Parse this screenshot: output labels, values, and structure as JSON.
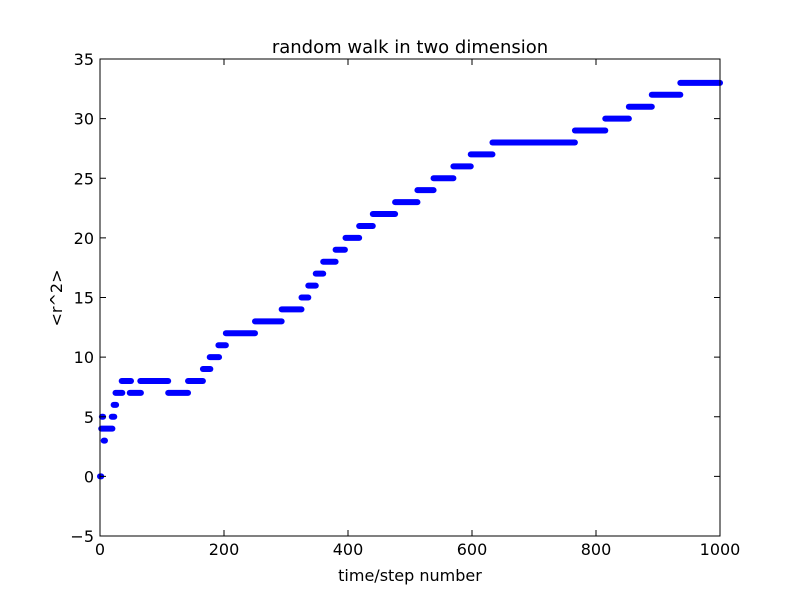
{
  "chart_data": {
    "type": "scatter",
    "title": "random walk in two dimension",
    "xlabel": "time/step number",
    "ylabel": "<r^2>",
    "xlim": [
      0,
      1000
    ],
    "ylim": [
      -5,
      35
    ],
    "xticks": [
      0,
      200,
      400,
      600,
      800,
      1000
    ],
    "yticks": [
      -5,
      0,
      5,
      10,
      15,
      20,
      25,
      30,
      35
    ],
    "grid": false,
    "marker_color": "#0000ff",
    "steps": [
      {
        "x0": 0,
        "x1": 2,
        "y": 0
      },
      {
        "x0": 3,
        "x1": 5,
        "y": 5
      },
      {
        "x0": 6,
        "x1": 8,
        "y": 3
      },
      {
        "x0": 2,
        "x1": 20,
        "y": 4
      },
      {
        "x0": 19,
        "x1": 23,
        "y": 5
      },
      {
        "x0": 22,
        "x1": 26,
        "y": 6
      },
      {
        "x0": 25,
        "x1": 36,
        "y": 7
      },
      {
        "x0": 35,
        "x1": 50,
        "y": 8
      },
      {
        "x0": 48,
        "x1": 66,
        "y": 7
      },
      {
        "x0": 65,
        "x1": 110,
        "y": 8
      },
      {
        "x0": 110,
        "x1": 142,
        "y": 7
      },
      {
        "x0": 142,
        "x1": 166,
        "y": 8
      },
      {
        "x0": 166,
        "x1": 178,
        "y": 9
      },
      {
        "x0": 177,
        "x1": 192,
        "y": 10
      },
      {
        "x0": 191,
        "x1": 203,
        "y": 11
      },
      {
        "x0": 203,
        "x1": 250,
        "y": 12
      },
      {
        "x0": 250,
        "x1": 293,
        "y": 13
      },
      {
        "x0": 293,
        "x1": 325,
        "y": 14
      },
      {
        "x0": 325,
        "x1": 336,
        "y": 15
      },
      {
        "x0": 336,
        "x1": 348,
        "y": 16
      },
      {
        "x0": 348,
        "x1": 360,
        "y": 17
      },
      {
        "x0": 360,
        "x1": 380,
        "y": 18
      },
      {
        "x0": 380,
        "x1": 395,
        "y": 19
      },
      {
        "x0": 396,
        "x1": 418,
        "y": 20
      },
      {
        "x0": 418,
        "x1": 440,
        "y": 21
      },
      {
        "x0": 440,
        "x1": 476,
        "y": 22
      },
      {
        "x0": 476,
        "x1": 512,
        "y": 23
      },
      {
        "x0": 512,
        "x1": 538,
        "y": 24
      },
      {
        "x0": 538,
        "x1": 570,
        "y": 25
      },
      {
        "x0": 570,
        "x1": 598,
        "y": 26
      },
      {
        "x0": 598,
        "x1": 633,
        "y": 27
      },
      {
        "x0": 633,
        "x1": 766,
        "y": 28
      },
      {
        "x0": 766,
        "x1": 815,
        "y": 29
      },
      {
        "x0": 815,
        "x1": 853,
        "y": 30
      },
      {
        "x0": 853,
        "x1": 890,
        "y": 31
      },
      {
        "x0": 890,
        "x1": 936,
        "y": 32
      },
      {
        "x0": 936,
        "x1": 1000,
        "y": 33
      }
    ]
  }
}
